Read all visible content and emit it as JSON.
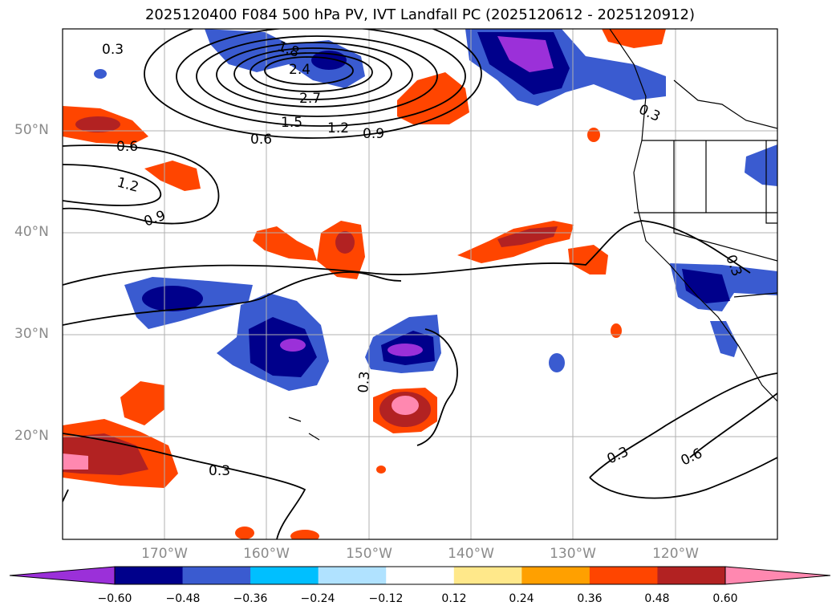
{
  "title": "2025120400 F084 500 hPa PV, IVT Landfall PC (2025120612 - 2025120912)",
  "latitude_labels": [
    "50°N",
    "40°N",
    "30°N",
    "20°N"
  ],
  "longitude_labels": [
    "170°W",
    "160°W",
    "150°W",
    "140°W",
    "130°W",
    "120°W"
  ],
  "contour_labels": [
    "0.3",
    "1.8",
    "2.4",
    "2.7",
    "1.5",
    "1.2",
    "0.9",
    "0.6",
    "1.2",
    "0.9",
    "0.3",
    "0.3",
    "0.3",
    "0.6",
    "0.3",
    "0.6",
    "0.3"
  ],
  "colorbar": {
    "ticks": [
      "−0.60",
      "−0.48",
      "−0.36",
      "−0.24",
      "−0.12",
      "0.12",
      "0.24",
      "0.36",
      "0.48",
      "0.60"
    ],
    "colors": [
      "#9b30d9",
      "#00008b",
      "#3a5bd0",
      "#00bfff",
      "#b0e2ff",
      "#ffffff",
      "#ffe88a",
      "#ffa000",
      "#ff4500",
      "#b22222",
      "#ff88b0"
    ]
  },
  "colors": {
    "pos_light": "#ffe88a",
    "pos_orange": "#ffa000",
    "pos_red": "#ff4500",
    "pos_dark": "#b22222",
    "pos_pink": "#ff88b0",
    "neg_light": "#b0e2ff",
    "neg_cyan": "#00bfff",
    "neg_mid": "#3a5bd0",
    "neg_dark": "#00008b",
    "neg_purple": "#9b30d9",
    "grid": "#b0b0b0",
    "axis_label": "#8a8a8a"
  }
}
